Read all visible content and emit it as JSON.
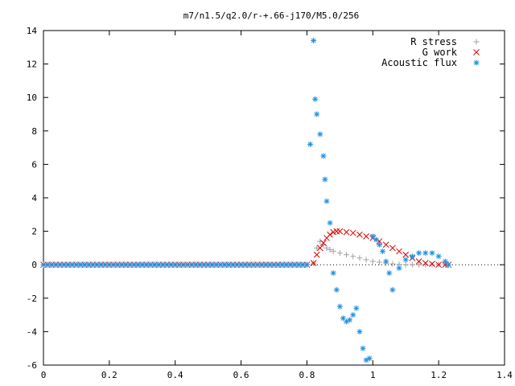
{
  "chart_data": {
    "type": "scatter",
    "title": "m7/n1.5/q2.0/r-+.66-j170/M5.0/256",
    "xlabel": "",
    "ylabel": "",
    "xlim": [
      0,
      1.4
    ],
    "ylim": [
      -6,
      14
    ],
    "x_ticks": [
      "0",
      "0.2",
      "0.4",
      "0.6",
      "0.8",
      "1",
      "1.2",
      "1.4"
    ],
    "y_ticks": [
      "-6",
      "-4",
      "-2",
      "0",
      "2",
      "4",
      "6",
      "8",
      "10",
      "12",
      "14"
    ],
    "grid": false,
    "legend_position": "top-right",
    "series": [
      {
        "name": "R stress",
        "color": "#a0a0a0",
        "marker": "plus",
        "x": [
          0.82,
          0.83,
          0.84,
          0.85,
          0.86,
          0.87,
          0.88,
          0.9,
          0.92,
          0.94,
          0.96,
          0.98,
          1.0,
          1.02,
          1.04,
          1.06,
          1.08,
          1.1,
          1.12,
          1.14,
          1.16,
          1.18,
          1.2,
          1.22
        ],
        "y": [
          0.1,
          1.0,
          1.4,
          1.2,
          1.0,
          0.9,
          0.8,
          0.7,
          0.6,
          0.5,
          0.4,
          0.3,
          0.2,
          0.15,
          0.1,
          0.05,
          0.02,
          0.0,
          0.0,
          0.0,
          0.0,
          0.0,
          0.0,
          0.0
        ]
      },
      {
        "name": "G work",
        "color": "#e00000",
        "marker": "cross",
        "x": [
          0.82,
          0.83,
          0.84,
          0.85,
          0.86,
          0.87,
          0.88,
          0.89,
          0.9,
          0.92,
          0.94,
          0.96,
          0.98,
          1.0,
          1.02,
          1.04,
          1.06,
          1.08,
          1.1,
          1.12,
          1.14,
          1.16,
          1.18,
          1.2,
          1.22,
          1.23
        ],
        "y": [
          0.1,
          0.6,
          1.0,
          1.3,
          1.6,
          1.8,
          1.95,
          2.0,
          2.0,
          1.95,
          1.9,
          1.8,
          1.7,
          1.6,
          1.4,
          1.2,
          1.0,
          0.8,
          0.6,
          0.4,
          0.2,
          0.1,
          0.05,
          0.0,
          0.0,
          0.0
        ]
      },
      {
        "name": "Acoustic flux",
        "color": "#1e90e0",
        "marker": "star",
        "x": [
          0.81,
          0.82,
          0.825,
          0.83,
          0.84,
          0.85,
          0.855,
          0.86,
          0.87,
          0.88,
          0.89,
          0.9,
          0.91,
          0.92,
          0.93,
          0.94,
          0.95,
          0.96,
          0.97,
          0.98,
          0.99,
          1.0,
          1.01,
          1.02,
          1.03,
          1.04,
          1.05,
          1.06,
          1.08,
          1.1,
          1.12,
          1.14,
          1.16,
          1.18,
          1.2,
          1.22,
          1.23
        ],
        "y": [
          7.2,
          13.4,
          9.9,
          9.0,
          7.8,
          6.5,
          5.1,
          3.8,
          2.5,
          -0.5,
          -1.5,
          -2.5,
          -3.2,
          -3.4,
          -3.3,
          -3.0,
          -2.6,
          -4.0,
          -5.0,
          -5.7,
          -5.6,
          1.7,
          1.5,
          1.2,
          0.8,
          0.2,
          -0.5,
          -1.5,
          -0.2,
          0.3,
          0.5,
          0.7,
          0.7,
          0.7,
          0.5,
          0.2,
          0.0
        ]
      }
    ]
  }
}
